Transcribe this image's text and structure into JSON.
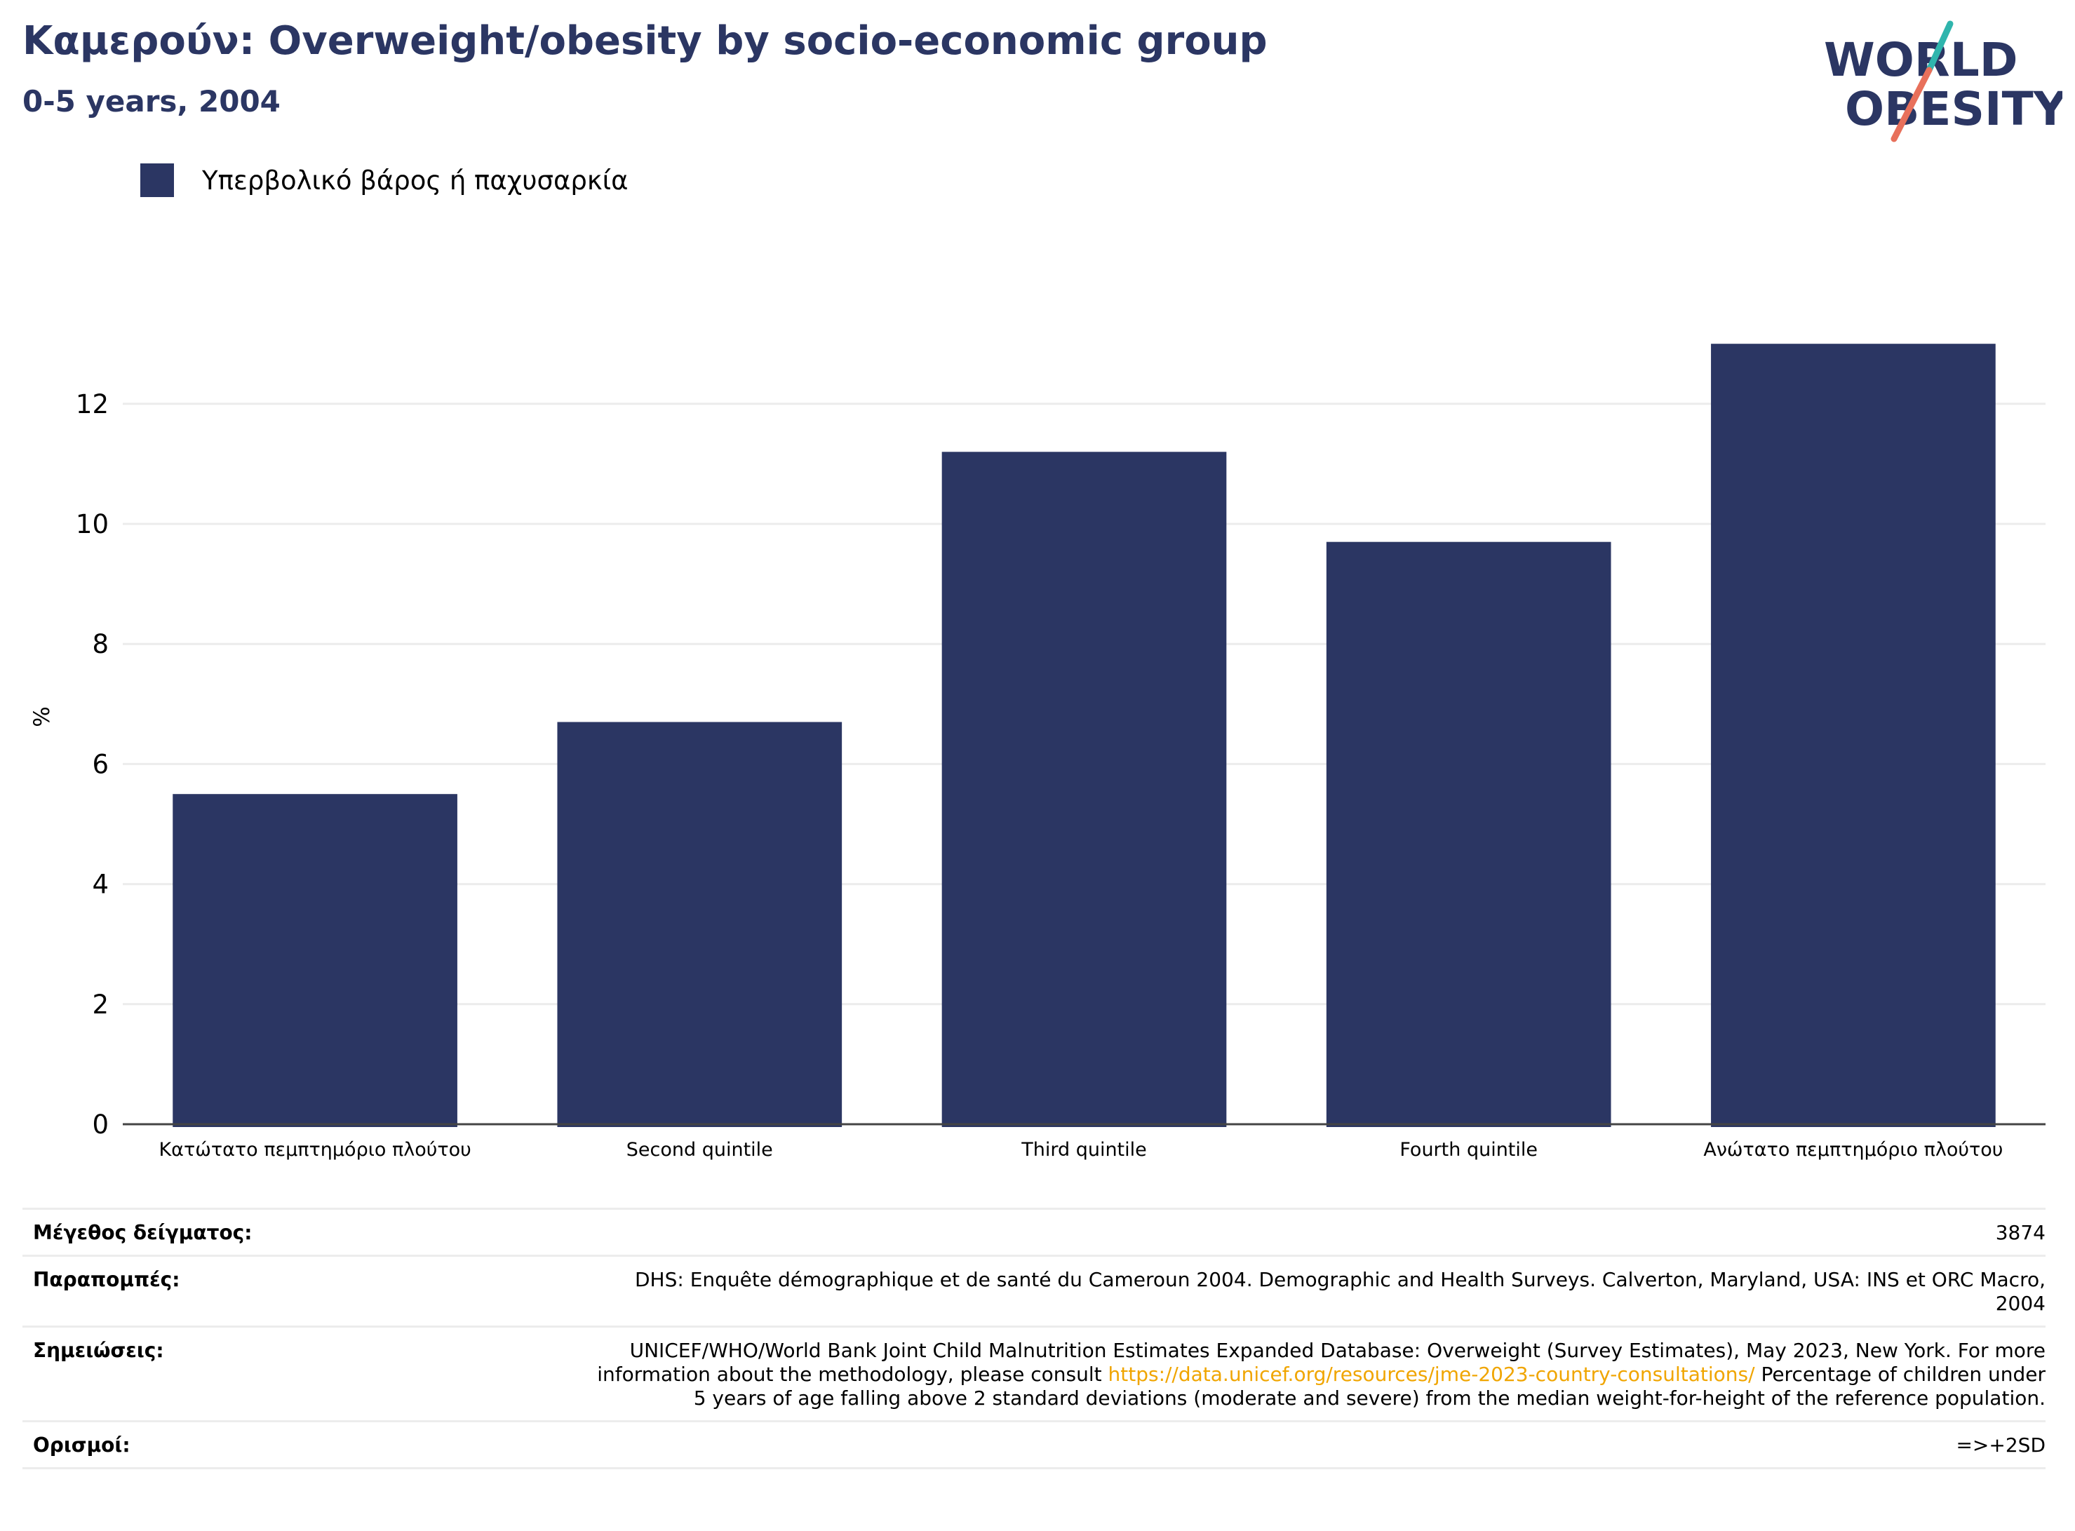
{
  "header": {
    "title": "Καμερούν: Overweight/obesity by socio-economic group",
    "subtitle": "0-5 years, 2004"
  },
  "logo": {
    "line1": "WORLD",
    "line2": "OBESITY"
  },
  "legend": {
    "label": "Υπερβολικό βάρος ή παχυσαρκία"
  },
  "colors": {
    "bar": "#2b3663",
    "title": "#2b3663",
    "grid": "#ececec",
    "link": "#f0a500",
    "logo_teal": "#2fb5ad",
    "logo_coral": "#e8705b"
  },
  "chart_data": {
    "type": "bar",
    "categories": [
      "Κατώτατο πεμπτημόριο πλούτου",
      "Second quintile",
      "Third quintile",
      "Fourth quintile",
      "Ανώτατο πεμπτημόριο πλούτου"
    ],
    "series": [
      {
        "name": "Υπερβολικό βάρος ή παχυσαρκία",
        "values": [
          5.5,
          6.7,
          11.2,
          9.7,
          13.0
        ]
      }
    ],
    "ylabel": "%",
    "ylim": [
      0,
      14
    ],
    "yticks": [
      0,
      2,
      4,
      6,
      8,
      10,
      12
    ],
    "grid": true,
    "legend": "top-left"
  },
  "meta": {
    "sample_size_label": "Μέγεθος δείγματος:",
    "sample_size_value": "3874",
    "references_label": "Παραπομπές:",
    "references_value": "DHS: Enquête démographique et de santé du Cameroun 2004. Demographic and Health Surveys. Calverton, Maryland, USA: INS et ORC Macro, 2004",
    "notes_label": "Σημειώσεις:",
    "notes_text_before": "UNICEF/WHO/World Bank Joint Child Malnutrition Estimates Expanded Database: Overweight (Survey Estimates), May 2023, New York. For more information about the methodology, please consult ",
    "notes_link": "https://data.unicef.org/resources/jme-2023-country-consultations/",
    "notes_text_after": " Percentage of children under 5 years of age falling above 2 standard deviations (moderate and severe) from the median weight-for-height of the reference population.",
    "definitions_label": "Ορισμοί:",
    "definitions_value": "=>+2SD"
  }
}
